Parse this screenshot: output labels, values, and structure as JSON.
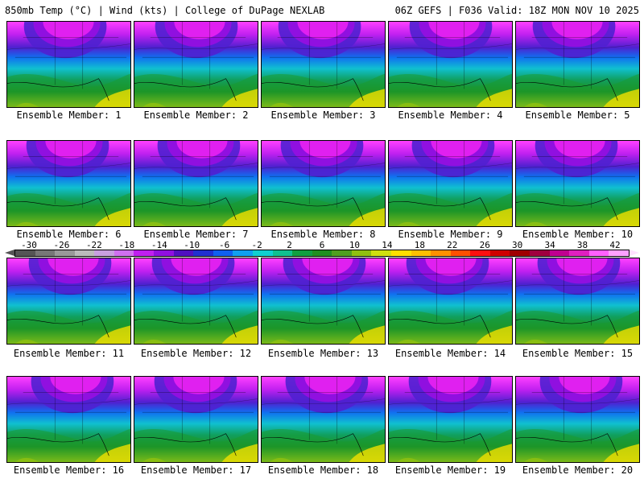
{
  "header": {
    "left": "850mb Temp (°C) | Wind (kts) | College of DuPage NEXLAB",
    "right": "06Z GEFS | F036 Valid: 18Z MON NOV 10 2025"
  },
  "members": [
    "Ensemble Member: 1",
    "Ensemble Member: 2",
    "Ensemble Member: 3",
    "Ensemble Member: 4",
    "Ensemble Member: 5",
    "Ensemble Member: 6",
    "Ensemble Member: 7",
    "Ensemble Member: 8",
    "Ensemble Member: 9",
    "Ensemble Member: 10",
    "Ensemble Member: 11",
    "Ensemble Member: 12",
    "Ensemble Member: 13",
    "Ensemble Member: 14",
    "Ensemble Member: 15",
    "Ensemble Member: 16",
    "Ensemble Member: 17",
    "Ensemble Member: 18",
    "Ensemble Member: 19",
    "Ensemble Member: 20"
  ],
  "colorbar": {
    "ticks": [
      "-30",
      "-26",
      "-22",
      "-18",
      "-14",
      "-10",
      "-6",
      "-2",
      "2",
      "6",
      "10",
      "14",
      "18",
      "22",
      "26",
      "30",
      "34",
      "38",
      "42"
    ],
    "colors": [
      "#555555",
      "#777777",
      "#999999",
      "#bbbbbb",
      "#c8a0e0",
      "#d070f0",
      "#c020f0",
      "#9010e0",
      "#5010c0",
      "#2030d0",
      "#1060f0",
      "#10a0f0",
      "#10d0d0",
      "#10c090",
      "#10a040",
      "#209020",
      "#50a020",
      "#90c010",
      "#d0e010",
      "#ffe000",
      "#ffc000",
      "#ff9000",
      "#ff5000",
      "#ff1010",
      "#d00000",
      "#a00000",
      "#a00040",
      "#c00090",
      "#e020c0",
      "#ff60ff",
      "#ffa0ff"
    ]
  }
}
